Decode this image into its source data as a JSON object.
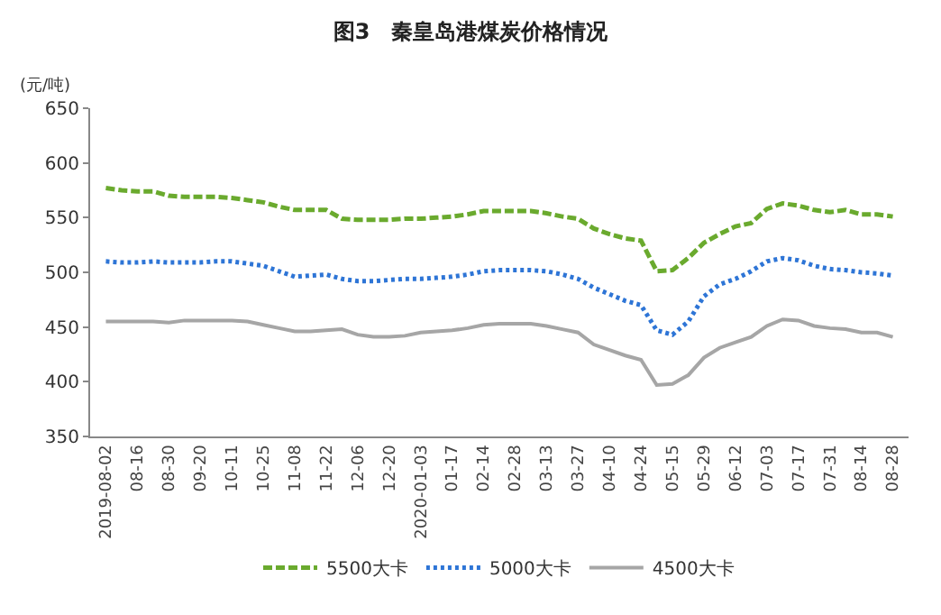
{
  "chart_data": {
    "type": "line",
    "title": "图3　秦皇岛港煤炭价格情况",
    "ylabel": "(元/吨)",
    "categories": [
      "2019-08-02",
      null,
      "08-16",
      null,
      "08-30",
      null,
      "09-20",
      null,
      "10-11",
      null,
      "10-25",
      null,
      "11-08",
      null,
      "11-22",
      null,
      "12-06",
      null,
      "12-20",
      null,
      "2020-01-03",
      null,
      "01-17",
      null,
      "02-14",
      null,
      "02-28",
      null,
      "03-13",
      null,
      "03-27",
      null,
      "04-10",
      null,
      "04-24",
      null,
      "05-15",
      null,
      "05-29",
      null,
      "06-12",
      null,
      "07-03",
      null,
      "07-17",
      null,
      "07-31",
      null,
      "08-14",
      null,
      "08-28"
    ],
    "ylim": [
      350,
      650
    ],
    "yticks": [
      350,
      400,
      450,
      500,
      550,
      600,
      650
    ],
    "legend": "bottom",
    "marker": "none",
    "series": [
      {
        "name": "5500大卡",
        "color": "#6aaa2e",
        "line_style": "dashed",
        "values": [
          577,
          575,
          574,
          574,
          570,
          569,
          569,
          569,
          568,
          566,
          564,
          560,
          557,
          557,
          557,
          549,
          548,
          548,
          548,
          549,
          549,
          550,
          551,
          553,
          556,
          556,
          556,
          556,
          554,
          551,
          549,
          540,
          535,
          531,
          529,
          501,
          502,
          513,
          527,
          535,
          542,
          545,
          558,
          563,
          561,
          557,
          555,
          557,
          553,
          553,
          551
        ]
      },
      {
        "name": "5000大卡",
        "color": "#2e75d6",
        "line_style": "dotted",
        "values": [
          510,
          509,
          509,
          510,
          509,
          509,
          509,
          510,
          510,
          508,
          506,
          501,
          496,
          497,
          498,
          494,
          492,
          492,
          493,
          494,
          494,
          495,
          496,
          498,
          501,
          502,
          502,
          502,
          501,
          498,
          494,
          486,
          480,
          474,
          470,
          447,
          443,
          455,
          478,
          489,
          494,
          501,
          510,
          513,
          511,
          506,
          503,
          502,
          500,
          499,
          497
        ]
      },
      {
        "name": "4500大卡",
        "color": "#a6a6a6",
        "line_style": "solid",
        "values": [
          455,
          455,
          455,
          455,
          454,
          456,
          456,
          456,
          456,
          455,
          452,
          449,
          446,
          446,
          447,
          448,
          443,
          441,
          441,
          442,
          445,
          446,
          447,
          449,
          452,
          453,
          453,
          453,
          451,
          448,
          445,
          434,
          429,
          424,
          420,
          397,
          398,
          406,
          422,
          431,
          436,
          441,
          451,
          457,
          456,
          451,
          449,
          448,
          445,
          445,
          441
        ]
      }
    ]
  }
}
